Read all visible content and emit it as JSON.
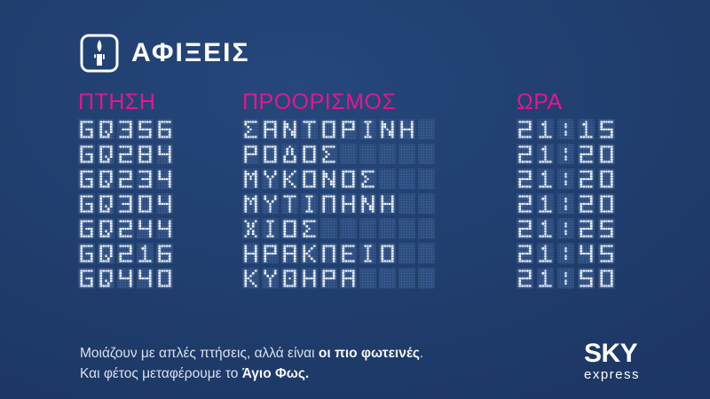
{
  "colors": {
    "background": "#1e3a68",
    "tile": "#294b80",
    "dot": "#eef3fa",
    "accent_pink": "#e6158e",
    "title_text": "#ffffff",
    "footer_text": "#d9e1ee"
  },
  "header": {
    "icon": "candle-icon",
    "title": "ΑΦΙΞΕΙΣ"
  },
  "board": {
    "columns": [
      {
        "key": "flight",
        "label": "ΠΤΗΣΗ",
        "tiles": 5
      },
      {
        "key": "destination",
        "label": "ΠΡΟΟΡΙΣΜΟΣ",
        "tiles": 10
      },
      {
        "key": "time",
        "label": "ΩΡΑ",
        "tiles": 5
      }
    ],
    "rows": [
      {
        "flight": "GQ356",
        "destination": "ΣΑΝΤΟΡΙΝΗ",
        "time": "21:15"
      },
      {
        "flight": "GQ284",
        "destination": "ΡΟΔΟΣ",
        "time": "21:20"
      },
      {
        "flight": "GQ234",
        "destination": "ΜΥΚΟΝΟΣ",
        "time": "21:20"
      },
      {
        "flight": "GQ304",
        "destination": "ΜΥΤΙΛΗΝΗ",
        "time": "21:20"
      },
      {
        "flight": "GQ244",
        "destination": "ΧΙΟΣ",
        "time": "21:25"
      },
      {
        "flight": "GQ216",
        "destination": "ΗΡΑΚΛΕΙΟ",
        "time": "21:45"
      },
      {
        "flight": "GQ440",
        "destination": "ΚΥΘΗΡΑ",
        "time": "21:50"
      }
    ]
  },
  "footer": {
    "lines": [
      {
        "segments": [
          {
            "text": "Μοιάζουν με απλές πτήσεις, αλλά είναι ",
            "bold": false
          },
          {
            "text": "οι πιο φωτεινές",
            "bold": true
          },
          {
            "text": ".",
            "bold": false
          }
        ]
      },
      {
        "segments": [
          {
            "text": "Και φέτος μεταφέρουμε το ",
            "bold": false
          },
          {
            "text": "Άγιο Φως.",
            "bold": true
          }
        ]
      }
    ]
  },
  "logo": {
    "primary": "SKY",
    "secondary": "express"
  }
}
